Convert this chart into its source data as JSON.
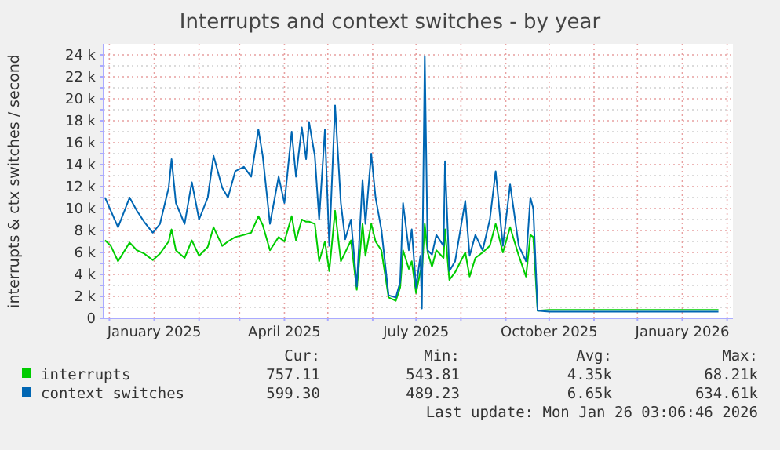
{
  "chart_data": {
    "type": "line",
    "title": "Interrupts and context switches - by year",
    "ylabel": "interrupts & ctx switches / second",
    "x": [
      "2024-11-28",
      "2024-12-02",
      "2024-12-07",
      "2024-12-15",
      "2024-12-20",
      "2024-12-25",
      "2024-12-31",
      "2025-01-05",
      "2025-01-11",
      "2025-01-13",
      "2025-01-16",
      "2025-01-22",
      "2025-01-27",
      "2025-02-01",
      "2025-02-07",
      "2025-02-11",
      "2025-02-17",
      "2025-02-21",
      "2025-02-26",
      "2025-03-04",
      "2025-03-09",
      "2025-03-14",
      "2025-03-17",
      "2025-03-22",
      "2025-03-28",
      "2025-04-01",
      "2025-04-06",
      "2025-04-09",
      "2025-04-13",
      "2025-04-16",
      "2025-04-18",
      "2025-04-22",
      "2025-04-25",
      "2025-04-29",
      "2025-05-02",
      "2025-05-06",
      "2025-05-10",
      "2025-05-13",
      "2025-05-17",
      "2025-05-21",
      "2025-05-25",
      "2025-05-27",
      "2025-05-31",
      "2025-06-03",
      "2025-06-07",
      "2025-06-12",
      "2025-06-17",
      "2025-06-20",
      "2025-06-22",
      "2025-06-26",
      "2025-06-28",
      "2025-07-01",
      "2025-07-04",
      "2025-07-05",
      "2025-07-07",
      "2025-07-09",
      "2025-07-12",
      "2025-07-15",
      "2025-07-20",
      "2025-07-21",
      "2025-07-24",
      "2025-07-28",
      "2025-08-04",
      "2025-08-07",
      "2025-08-11",
      "2025-08-16",
      "2025-08-21",
      "2025-08-25",
      "2025-08-30",
      "2025-09-04",
      "2025-09-10",
      "2025-09-15",
      "2025-09-18",
      "2025-09-20",
      "2025-09-23",
      "2025-10-01",
      "2025-11-03",
      "2025-12-05",
      "2026-01-07",
      "2026-01-26"
    ],
    "series": [
      {
        "name": "interrupts",
        "color": "#00cc00",
        "values": [
          7100,
          6600,
          5200,
          6900,
          6200,
          5900,
          5300,
          5900,
          7000,
          8100,
          6200,
          5500,
          7100,
          5700,
          6500,
          8300,
          6600,
          7000,
          7400,
          7600,
          7800,
          9300,
          8500,
          6200,
          7400,
          7000,
          9300,
          7100,
          9000,
          8800,
          8800,
          8600,
          5200,
          7000,
          4300,
          9800,
          5200,
          6000,
          7100,
          2600,
          8600,
          5700,
          8600,
          7000,
          6200,
          1900,
          1600,
          2800,
          6200,
          4500,
          5200,
          2300,
          4300,
          4000,
          8600,
          6000,
          4700,
          6200,
          5500,
          8100,
          3500,
          4200,
          6000,
          3800,
          5500,
          6000,
          6600,
          8600,
          6000,
          8300,
          5700,
          3800,
          7600,
          7400,
          700,
          760,
          760,
          760,
          760,
          760
        ]
      },
      {
        "name": "context switches",
        "color": "#0066b3",
        "values": [
          11000,
          9800,
          8300,
          11000,
          9800,
          8800,
          7800,
          8600,
          11900,
          14500,
          10500,
          8600,
          12400,
          9000,
          11000,
          14800,
          11900,
          11000,
          13400,
          13800,
          12900,
          17200,
          14800,
          8600,
          12900,
          10500,
          17000,
          12900,
          17400,
          14500,
          17900,
          14800,
          9000,
          17200,
          6600,
          19400,
          10500,
          7200,
          9000,
          2900,
          12600,
          8600,
          15000,
          11000,
          8100,
          2100,
          1900,
          3300,
          10500,
          6200,
          8100,
          2800,
          5700,
          900,
          23900,
          6200,
          5800,
          7600,
          6600,
          14300,
          4300,
          5200,
          10700,
          5700,
          7600,
          6200,
          9000,
          13400,
          6600,
          12200,
          6600,
          5200,
          11000,
          10000,
          700,
          600,
          600,
          600,
          600,
          600
        ]
      }
    ],
    "xlim": [
      "2024-11-27",
      "2026-02-05"
    ],
    "xticks": [
      {
        "value": "2024-12-01",
        "label": null
      },
      {
        "value": "2025-01-01",
        "label": "January 2025"
      },
      {
        "value": "2025-02-01",
        "label": null
      },
      {
        "value": "2025-03-01",
        "label": null
      },
      {
        "value": "2025-04-01",
        "label": "April 2025"
      },
      {
        "value": "2025-05-01",
        "label": null
      },
      {
        "value": "2025-06-01",
        "label": null
      },
      {
        "value": "2025-07-01",
        "label": "July 2025"
      },
      {
        "value": "2025-08-01",
        "label": null
      },
      {
        "value": "2025-09-01",
        "label": null
      },
      {
        "value": "2025-10-01",
        "label": "October 2025"
      },
      {
        "value": "2025-11-01",
        "label": null
      },
      {
        "value": "2025-12-01",
        "label": null
      },
      {
        "value": "2026-01-01",
        "label": "January 2026"
      },
      {
        "value": "2026-02-01",
        "label": null
      }
    ],
    "ylim": [
      0,
      25000
    ],
    "yticks": [
      0,
      {
        "value": 1000,
        "label": null
      },
      {
        "value": 2000,
        "label": "2 k"
      },
      {
        "value": 3000,
        "label": null
      },
      {
        "value": 4000,
        "label": "4 k"
      },
      {
        "value": 5000,
        "label": null
      },
      {
        "value": 6000,
        "label": "6 k"
      },
      {
        "value": 7000,
        "label": null
      },
      {
        "value": 8000,
        "label": "8 k"
      },
      {
        "value": 9000,
        "label": null
      },
      {
        "value": 10000,
        "label": "10 k"
      },
      {
        "value": 11000,
        "label": null
      },
      {
        "value": 12000,
        "label": "12 k"
      },
      {
        "value": 13000,
        "label": null
      },
      {
        "value": 14000,
        "label": "14 k"
      },
      {
        "value": 15000,
        "label": null
      },
      {
        "value": 16000,
        "label": "16 k"
      },
      {
        "value": 17000,
        "label": null
      },
      {
        "value": 18000,
        "label": "18 k"
      },
      {
        "value": 19000,
        "label": null
      },
      {
        "value": 20000,
        "label": "20 k"
      },
      {
        "value": 21000,
        "label": null
      },
      {
        "value": 22000,
        "label": "22 k"
      },
      {
        "value": 23000,
        "label": null
      },
      {
        "value": 24000,
        "label": "24 k"
      }
    ],
    "grid": true,
    "legend": "bottom",
    "marker": "none",
    "line_style": "solid",
    "annotations": [
      "Cur:",
      "Min:",
      "Avg:",
      "Max:",
      "757.11",
      "543.81",
      "4.35k",
      "68.21k",
      "599.30",
      "489.23",
      "6.65k",
      "634.61k",
      "Last update: Mon Jan 26 03:06:46 2026"
    ]
  }
}
